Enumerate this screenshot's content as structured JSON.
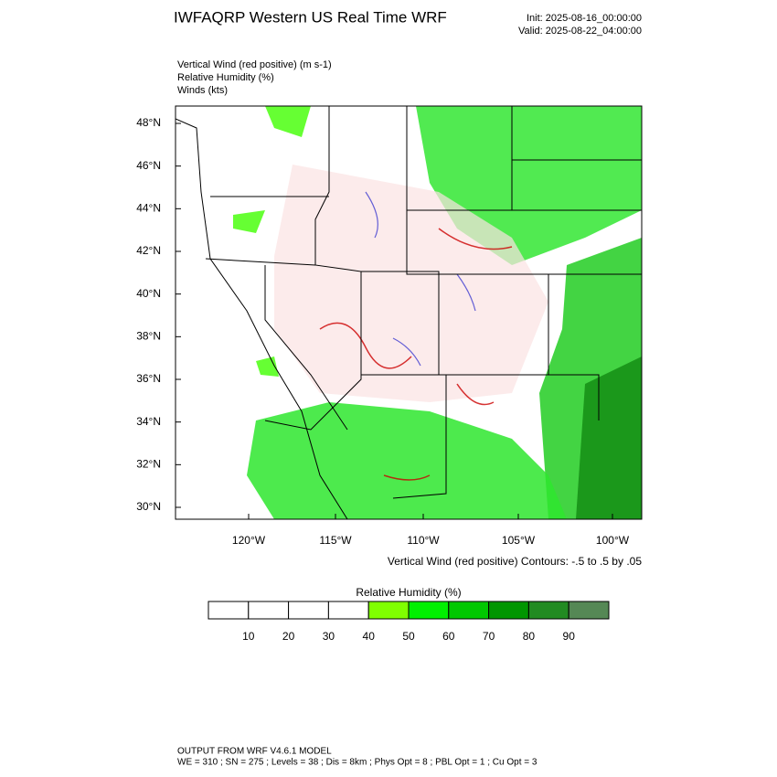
{
  "header": {
    "title": "IWFAQRP Western US Real Time WRF",
    "init": "Init: 2025-08-16_00:00:00",
    "valid": "Valid: 2025-08-22_04:00:00"
  },
  "fields": [
    "Vertical Wind (red positive)   (m s-1)",
    "Relative Humidity   (%)",
    "Winds   (kts)"
  ],
  "map": {
    "lat_labels": [
      "48°N",
      "46°N",
      "44°N",
      "42°N",
      "40°N",
      "38°N",
      "36°N",
      "34°N",
      "32°N",
      "30°N"
    ],
    "lon_labels": [
      "120°W",
      "115°W",
      "110°W",
      "105°W",
      "100°W"
    ]
  },
  "contour_note": "Vertical Wind (red positive) Contours: -.5 to .5 by .05",
  "colorbar": {
    "title": "Relative Humidity   (%)",
    "labels": [
      "10",
      "20",
      "30",
      "40",
      "50",
      "60",
      "70",
      "80",
      "90"
    ],
    "colors": [
      "#ffffff",
      "#ffffff",
      "#ffffff",
      "#ffffff",
      "#80ff00",
      "#00f000",
      "#00c800",
      "#009600",
      "#228b22",
      "#558855"
    ]
  },
  "footer": [
    "OUTPUT FROM WRF V4.6.1 MODEL",
    "WE = 310 ; SN = 275 ; Levels = 38 ; Dis = 8km ; Phys Opt = 8 ; PBL Opt = 1 ; Cu Opt = 3"
  ]
}
